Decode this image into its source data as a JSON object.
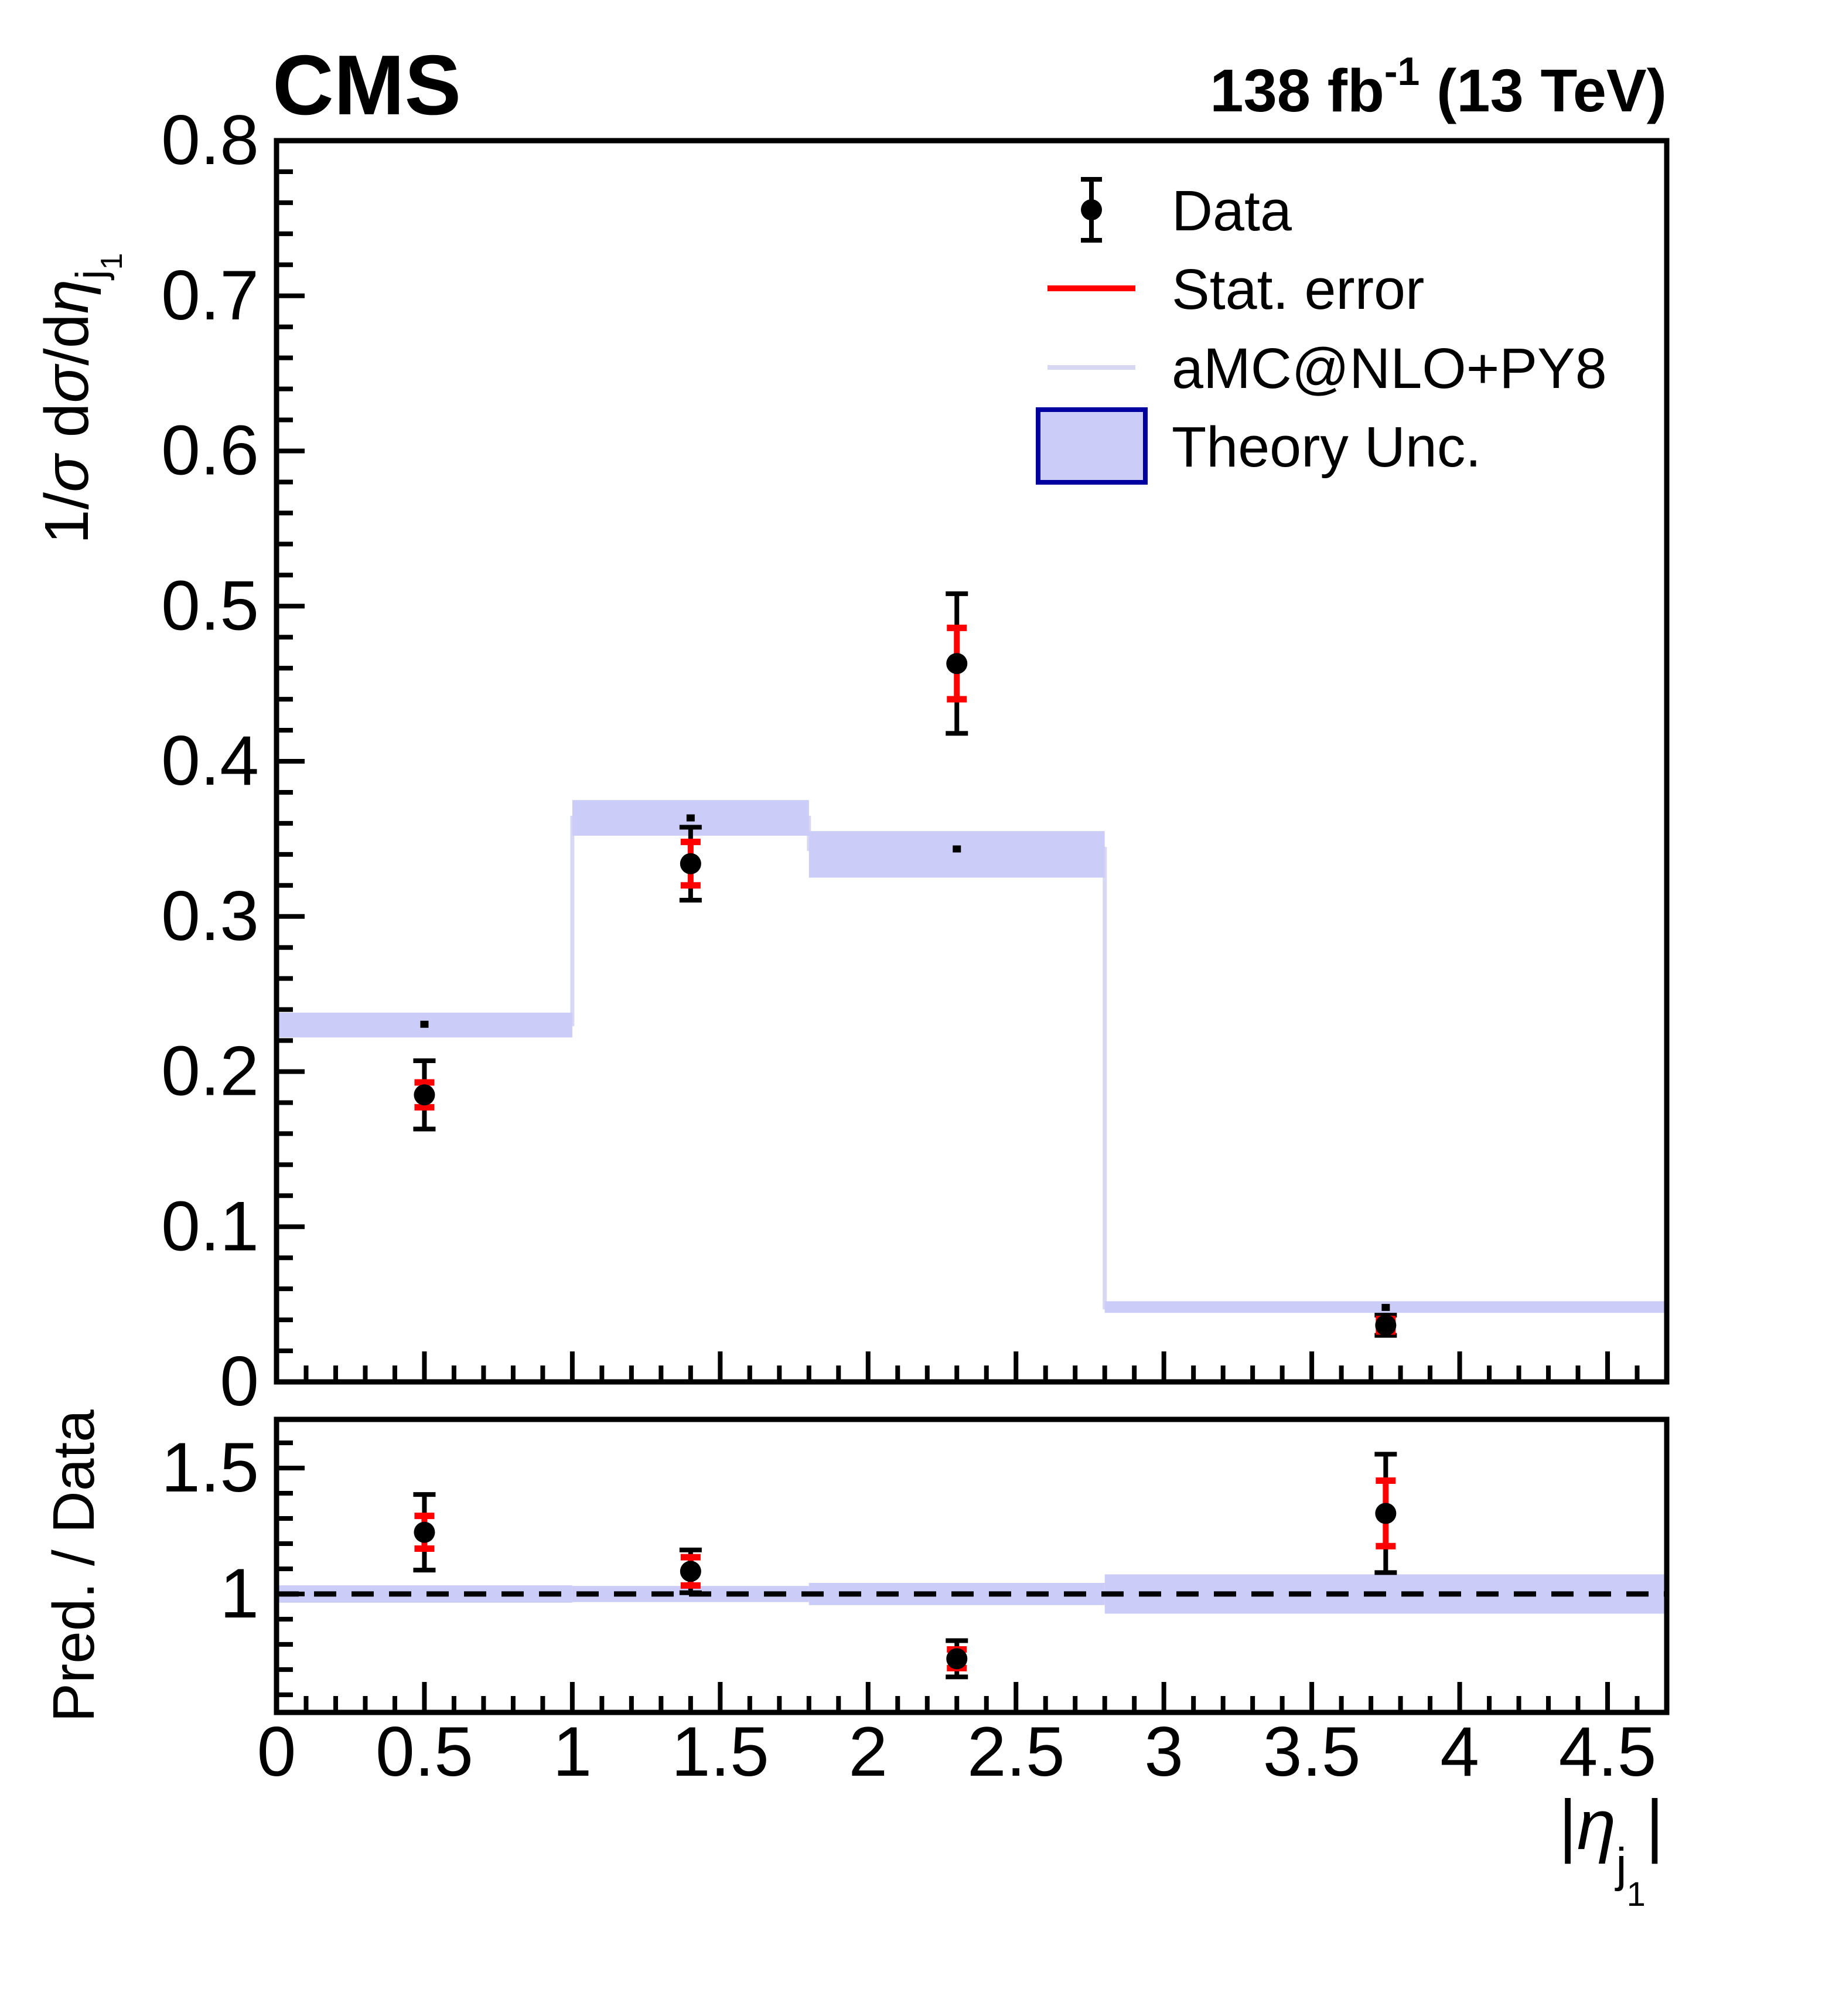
{
  "header": {
    "experiment": "CMS",
    "lumi_prefix": "138 fb",
    "lumi_sup": "-1",
    "lumi_suffix": " (13 TeV)"
  },
  "legend": {
    "items": [
      {
        "label": "Data",
        "marker": "black-point-with-error-bar"
      },
      {
        "label": "Stat. error",
        "marker": "red-line"
      },
      {
        "label": "aMC@NLO+PY8",
        "marker": "lavender-line"
      },
      {
        "label": "Theory Unc.",
        "marker": "lavender-filled-box"
      }
    ]
  },
  "colors": {
    "data": "#000000",
    "stat_error": "#ff0000",
    "theory_line": "#d8d8f2",
    "band_fill": "#ccccf8",
    "band_border": "#0000a0"
  },
  "axes": {
    "x_title_parts": {
      "bar1": "|",
      "eta": "η",
      "sub": "j",
      "subsub": "1",
      "bar2": "|"
    },
    "main_y_title_parts": {
      "n1": "1/",
      "g1": "σ",
      "n2": " d",
      "g2": "σ",
      "n3": "/d",
      "g3": "η",
      "sub": "j",
      "subsub": "1"
    },
    "ratio_y_title": "Pred. / Data",
    "main_y_tick_labels": [
      "0",
      "0.1",
      "0.2",
      "0.3",
      "0.4",
      "0.5",
      "0.6",
      "0.7",
      "0.8"
    ],
    "x_tick_labels": [
      "0",
      "0.5",
      "1",
      "1.5",
      "2",
      "2.5",
      "3",
      "3.5",
      "4",
      "4.5"
    ],
    "ratio_y_tick_labels": [
      "1",
      "1.5"
    ]
  },
  "chart_data": {
    "type": "scatter",
    "title": "CMS, 138 fb-1 (13 TeV)",
    "xlabel": "|eta_j1|",
    "xlim": [
      0,
      4.7
    ],
    "x_edges": [
      0,
      1,
      1.8,
      2.8,
      4.7
    ],
    "x_centers": [
      0.5,
      1.4,
      2.3,
      3.75
    ],
    "grid": false,
    "legend_position": "top-right-inside",
    "panels": [
      {
        "name": "main",
        "ylabel": "1/sigma dsigma/deta_j1",
        "ylim": [
          0,
          0.8
        ],
        "y_major_step": 0.1,
        "y_minor_step": 0.02,
        "series": [
          {
            "name": "Data",
            "y": [
              0.185,
              0.334,
              0.463,
              0.0365
            ],
            "err_total": [
              0.022,
              0.0235,
              0.045,
              0.0065
            ],
            "err_stat": [
              0.008,
              0.014,
              0.023,
              0.004
            ]
          },
          {
            "name": "aMC@NLO+PY8",
            "y": [
              0.2305,
              0.3635,
              0.3435,
              0.048
            ],
            "band_lo": [
              0.222,
              0.352,
              0.325,
              0.0445
            ],
            "band_hi": [
              0.238,
              0.375,
              0.355,
              0.052
            ]
          }
        ]
      },
      {
        "name": "ratio",
        "ylabel": "Pred. / Data",
        "ylim": [
          0.53,
          1.693
        ],
        "y_major_ticks": [
          1.0,
          1.5
        ],
        "y_minor_step": 0.1,
        "reference_line": 1.0,
        "series": [
          {
            "name": "Pred. / Data points",
            "y": [
              1.245,
              1.09,
              0.743,
              1.32
            ],
            "err_total": [
              0.15,
              0.085,
              0.072,
              0.235
            ],
            "err_stat": [
              0.065,
              0.056,
              0.037,
              0.13
            ]
          },
          {
            "name": "Theory Unc. / Pred.",
            "band_lo": [
              0.9655,
              0.968,
              0.956,
              0.922
            ],
            "band_hi": [
              1.0345,
              1.032,
              1.044,
              1.078
            ]
          }
        ]
      }
    ]
  }
}
